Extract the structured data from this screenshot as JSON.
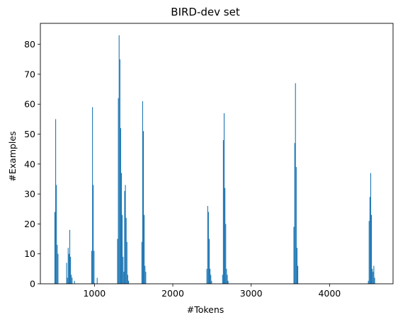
{
  "chart_data": {
    "type": "bar",
    "title": "BIRD-dev set",
    "xlabel": "#Tokens",
    "ylabel": "#Examples",
    "xlim": [
      310,
      4810
    ],
    "ylim": [
      0,
      87
    ],
    "xticks": [
      1000,
      2000,
      3000,
      4000
    ],
    "yticks": [
      0,
      10,
      20,
      30,
      40,
      50,
      60,
      70,
      80
    ],
    "grid": false,
    "bin_width": 10,
    "bar_color": "#1f77b4",
    "bins": [
      {
        "x": 490,
        "y": 24
      },
      {
        "x": 500,
        "y": 55
      },
      {
        "x": 510,
        "y": 33
      },
      {
        "x": 520,
        "y": 13
      },
      {
        "x": 530,
        "y": 10
      },
      {
        "x": 640,
        "y": 7
      },
      {
        "x": 650,
        "y": 2
      },
      {
        "x": 660,
        "y": 12
      },
      {
        "x": 670,
        "y": 10
      },
      {
        "x": 680,
        "y": 18
      },
      {
        "x": 690,
        "y": 9
      },
      {
        "x": 700,
        "y": 3
      },
      {
        "x": 710,
        "y": 2
      },
      {
        "x": 740,
        "y": 1
      },
      {
        "x": 960,
        "y": 11
      },
      {
        "x": 970,
        "y": 59
      },
      {
        "x": 980,
        "y": 33
      },
      {
        "x": 990,
        "y": 11
      },
      {
        "x": 1030,
        "y": 2
      },
      {
        "x": 1290,
        "y": 15
      },
      {
        "x": 1300,
        "y": 62
      },
      {
        "x": 1310,
        "y": 83
      },
      {
        "x": 1320,
        "y": 75
      },
      {
        "x": 1330,
        "y": 52
      },
      {
        "x": 1340,
        "y": 37
      },
      {
        "x": 1350,
        "y": 23
      },
      {
        "x": 1360,
        "y": 9
      },
      {
        "x": 1370,
        "y": 4
      },
      {
        "x": 1380,
        "y": 31
      },
      {
        "x": 1390,
        "y": 33
      },
      {
        "x": 1400,
        "y": 22
      },
      {
        "x": 1410,
        "y": 14
      },
      {
        "x": 1420,
        "y": 3
      },
      {
        "x": 1430,
        "y": 1
      },
      {
        "x": 1600,
        "y": 14
      },
      {
        "x": 1610,
        "y": 61
      },
      {
        "x": 1620,
        "y": 51
      },
      {
        "x": 1630,
        "y": 23
      },
      {
        "x": 1640,
        "y": 6
      },
      {
        "x": 1650,
        "y": 4
      },
      {
        "x": 2430,
        "y": 5
      },
      {
        "x": 2440,
        "y": 26
      },
      {
        "x": 2450,
        "y": 24
      },
      {
        "x": 2460,
        "y": 15
      },
      {
        "x": 2470,
        "y": 5
      },
      {
        "x": 2480,
        "y": 3
      },
      {
        "x": 2490,
        "y": 1
      },
      {
        "x": 2630,
        "y": 3
      },
      {
        "x": 2640,
        "y": 48
      },
      {
        "x": 2650,
        "y": 57
      },
      {
        "x": 2660,
        "y": 32
      },
      {
        "x": 2670,
        "y": 20
      },
      {
        "x": 2680,
        "y": 5
      },
      {
        "x": 2690,
        "y": 3
      },
      {
        "x": 2700,
        "y": 1
      },
      {
        "x": 3540,
        "y": 19
      },
      {
        "x": 3550,
        "y": 47
      },
      {
        "x": 3560,
        "y": 67
      },
      {
        "x": 3570,
        "y": 39
      },
      {
        "x": 3580,
        "y": 12
      },
      {
        "x": 3590,
        "y": 6
      },
      {
        "x": 4490,
        "y": 1
      },
      {
        "x": 4500,
        "y": 21
      },
      {
        "x": 4510,
        "y": 29
      },
      {
        "x": 4520,
        "y": 37
      },
      {
        "x": 4530,
        "y": 23
      },
      {
        "x": 4540,
        "y": 5
      },
      {
        "x": 4550,
        "y": 4
      },
      {
        "x": 4560,
        "y": 6
      },
      {
        "x": 4570,
        "y": 2
      }
    ]
  }
}
